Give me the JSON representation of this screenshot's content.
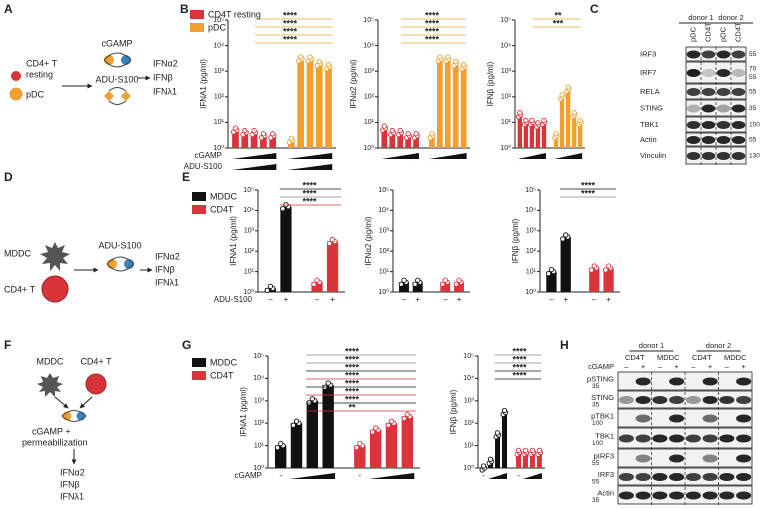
{
  "panel_labels": [
    "A",
    "B",
    "C",
    "D",
    "E",
    "F",
    "G",
    "H"
  ],
  "diagram_a": {
    "cell1_lines": [
      "CD4+ T",
      "resting"
    ],
    "cell2": "pDC",
    "agonists": [
      "cGAMP",
      "ADU-S100"
    ],
    "outputs": [
      "IFNα2",
      "IFNβ",
      "IFNλ1"
    ]
  },
  "diagram_d": {
    "cells": [
      "MDDC",
      "CD4+ T"
    ],
    "agonist": "ADU-S100",
    "outputs": [
      "IFNα2",
      "IFNβ",
      "IFNλ1"
    ]
  },
  "diagram_f": {
    "cells": [
      "MDDC",
      "CD4+ T"
    ],
    "step_lines": [
      "cGAMP +",
      "permeabilization"
    ],
    "outputs": [
      "IFNα2",
      "IFNβ",
      "IFNλ1"
    ]
  },
  "blot_c": {
    "groups": [
      "donor 1",
      "donor 2"
    ],
    "lanes": [
      "pDC",
      "CD4T",
      "pDC",
      "CD4T"
    ],
    "rows": [
      {
        "name": "IRF3",
        "mw": [
          55
        ]
      },
      {
        "name": "IRF7",
        "mw": [
          70,
          55
        ]
      },
      {
        "name": "RELA",
        "mw": [
          55
        ]
      },
      {
        "name": "STING",
        "mw": [
          35
        ]
      },
      {
        "name": "TBK1",
        "mw": [
          100
        ]
      },
      {
        "name": "Actin",
        "mw": [
          55
        ]
      },
      {
        "name": "Vinculin",
        "mw": [
          130
        ]
      }
    ]
  },
  "blot_h": {
    "treatment": "cGAMP",
    "groups": [
      "donor 1",
      "donor 2"
    ],
    "lanes": [
      "CD4T",
      "MDDC",
      "CD4T",
      "MDDC"
    ],
    "signs": [
      "–",
      "+"
    ],
    "rows": [
      {
        "name": "pSTING",
        "mw": [
          35
        ]
      },
      {
        "name": "STING",
        "mw": [
          35
        ]
      },
      {
        "name": "pTBK1",
        "mw": [
          100
        ]
      },
      {
        "name": "TBK1",
        "mw": [
          100
        ]
      },
      {
        "name": "pIRF3",
        "mw": [
          55
        ]
      },
      {
        "name": "IRF3",
        "mw": [
          55
        ]
      },
      {
        "name": "Actin",
        "mw": [
          35
        ]
      }
    ]
  },
  "chart_data": [
    {
      "type": "bar",
      "ylabel": "IFNA1 (pg/ml)",
      "log": true,
      "ylim": [
        1,
        100000
      ],
      "yticks": [
        {
          "value": 1,
          "label": "10⁰"
        },
        {
          "value": 10,
          "label": "10¹"
        },
        {
          "value": 100,
          "label": "10²"
        },
        {
          "value": 1000,
          "label": "10³"
        },
        {
          "value": 10000,
          "label": "10⁴"
        },
        {
          "value": 100000,
          "label": "10⁵"
        }
      ],
      "categories": [
        null,
        null,
        null,
        null,
        null
      ],
      "legend": true,
      "xlabels": [
        "cGAMP",
        "ADU-S100"
      ],
      "series": [
        {
          "name": "CD4T resting",
          "color": "#d9343a",
          "values": [
            5,
            4,
            4,
            3,
            3
          ]
        },
        {
          "name": "pDC",
          "color": "#f0a030",
          "values": [
            2,
            3000,
            3000,
            2000,
            1500
          ]
        }
      ],
      "annotations": [
        {
          "text": "****",
          "color": "#f0a030"
        },
        {
          "text": "****",
          "color": "#f0a030"
        },
        {
          "text": "****",
          "color": "#f0a030"
        },
        {
          "text": "****",
          "color": "#f0a030"
        }
      ]
    },
    {
      "type": "bar",
      "ylabel": "IFNα2 (pg/ml)",
      "log": true,
      "ylim": [
        1,
        100000
      ],
      "yticks": [
        {
          "value": 1,
          "label": "10⁰"
        },
        {
          "value": 10,
          "label": "10¹"
        },
        {
          "value": 100,
          "label": "10²"
        },
        {
          "value": 1000,
          "label": "10³"
        },
        {
          "value": 10000,
          "label": "10⁴"
        },
        {
          "value": 100000,
          "label": "10⁵"
        }
      ],
      "categories": [
        null,
        null,
        null,
        null,
        null
      ],
      "series": [
        {
          "name": "CD4T resting",
          "color": "#d9343a",
          "values": [
            6,
            4,
            4,
            3,
            3
          ]
        },
        {
          "name": "pDC",
          "color": "#f0a030",
          "values": [
            3,
            3000,
            3000,
            2000,
            1500
          ]
        }
      ],
      "annotations": [
        {
          "text": "****",
          "color": "#f0a030"
        },
        {
          "text": "****",
          "color": "#f0a030"
        },
        {
          "text": "****",
          "color": "#f0a030"
        },
        {
          "text": "****",
          "color": "#f0a030"
        }
      ]
    },
    {
      "type": "bar",
      "ylabel": "IFNβ (pg/ml)",
      "log": true,
      "ylim": [
        1,
        100000
      ],
      "yticks": [
        {
          "value": 1,
          "label": "10⁰"
        },
        {
          "value": 10,
          "label": "10¹"
        },
        {
          "value": 100,
          "label": "10²"
        },
        {
          "value": 1000,
          "label": "10³"
        },
        {
          "value": 10000,
          "label": "10⁴"
        },
        {
          "value": 100000,
          "label": "10⁵"
        }
      ],
      "categories": [
        null,
        null,
        null,
        null,
        null
      ],
      "series": [
        {
          "name": "CD4T resting",
          "color": "#d9343a",
          "values": [
            20,
            10,
            10,
            8,
            10
          ]
        },
        {
          "name": "pDC",
          "color": "#f0a030",
          "values": [
            3,
            100,
            200,
            20,
            10
          ]
        }
      ],
      "annotations": [
        {
          "text": "**",
          "color": "#f0a030"
        },
        {
          "text": "***",
          "color": "#f0a030"
        }
      ]
    },
    {
      "type": "bar",
      "ylabel": "IFNA1 (pg/ml)",
      "log": true,
      "ylim": [
        1,
        100000
      ],
      "yticks": [
        {
          "value": 1,
          "label": "10⁰"
        },
        {
          "value": 10,
          "label": "10¹"
        },
        {
          "value": 100,
          "label": "10²"
        },
        {
          "value": 1000,
          "label": "10³"
        },
        {
          "value": 10000,
          "label": "10⁴"
        },
        {
          "value": 100000,
          "label": "10⁵"
        }
      ],
      "categories": [
        "–",
        "+"
      ],
      "legend": true,
      "xlabels": [
        "ADU-S100"
      ],
      "series": [
        {
          "name": "MDDC",
          "color": "#111111",
          "values": [
            1.5,
            15000
          ]
        },
        {
          "name": "CD4T",
          "color": "#d9343a",
          "values": [
            3,
            300
          ]
        }
      ],
      "annotations": [
        {
          "text": "****",
          "color": "#111111"
        },
        {
          "text": "****",
          "color": "#888888"
        },
        {
          "text": "****",
          "color": "#d9343a"
        }
      ]
    },
    {
      "type": "bar",
      "ylabel": "IFNα2 (pg/ml)",
      "log": true,
      "ylim": [
        1,
        100000
      ],
      "yticks": [
        {
          "value": 1,
          "label": "10⁰"
        },
        {
          "value": 10,
          "label": "10¹"
        },
        {
          "value": 100,
          "label": "10²"
        },
        {
          "value": 1000,
          "label": "10³"
        },
        {
          "value": 10000,
          "label": "10⁴"
        },
        {
          "value": 100000,
          "label": "10⁵"
        }
      ],
      "categories": [
        "–",
        "+"
      ],
      "series": [
        {
          "name": "MDDC",
          "color": "#111111",
          "values": [
            3,
            3
          ]
        },
        {
          "name": "CD4T",
          "color": "#d9343a",
          "values": [
            3,
            3
          ]
        }
      ]
    },
    {
      "type": "bar",
      "ylabel": "IFNβ (pg/ml)",
      "log": true,
      "ylim": [
        1,
        100000
      ],
      "yticks": [
        {
          "value": 1,
          "label": "10⁰"
        },
        {
          "value": 10,
          "label": "10¹"
        },
        {
          "value": 100,
          "label": "10²"
        },
        {
          "value": 1000,
          "label": "10³"
        },
        {
          "value": 10000,
          "label": "10⁴"
        },
        {
          "value": 100000,
          "label": "10⁵"
        }
      ],
      "categories": [
        "–",
        "+"
      ],
      "series": [
        {
          "name": "MDDC",
          "color": "#111111",
          "values": [
            10,
            500
          ]
        },
        {
          "name": "CD4T",
          "color": "#d9343a",
          "values": [
            15,
            15
          ]
        }
      ],
      "annotations": [
        {
          "text": "****",
          "color": "#111111"
        },
        {
          "text": "****",
          "color": "#888888"
        }
      ]
    },
    {
      "type": "bar",
      "ylabel": "IFNA1 (pg/ml)",
      "log": true,
      "ylim": [
        1,
        100000
      ],
      "yticks": [
        {
          "value": 1,
          "label": "10⁰"
        },
        {
          "value": 10,
          "label": "10¹"
        },
        {
          "value": 100,
          "label": "10²"
        },
        {
          "value": 1000,
          "label": "10³"
        },
        {
          "value": 10000,
          "label": "10⁴"
        },
        {
          "value": 100000,
          "label": "10⁵"
        }
      ],
      "categories": [
        "-",
        null,
        null,
        null
      ],
      "legend": true,
      "xlabels": [
        "cGAMP"
      ],
      "series": [
        {
          "name": "MDDC",
          "color": "#111111",
          "values": [
            10,
            100,
            1000,
            5000
          ]
        },
        {
          "name": "CD4T",
          "color": "#d9343a",
          "values": [
            10,
            50,
            100,
            200
          ]
        }
      ],
      "annotations": [
        {
          "text": "****",
          "color": "#888888"
        },
        {
          "text": "****",
          "color": "#888888"
        },
        {
          "text": "****",
          "color": "#111111"
        },
        {
          "text": "****",
          "color": "#d9343a"
        },
        {
          "text": "****",
          "color": "#111111"
        },
        {
          "text": "****",
          "color": "#d9343a"
        },
        {
          "text": "****",
          "color": "#111111"
        },
        {
          "text": "**",
          "color": "#d9343a"
        }
      ]
    },
    {
      "type": "bar",
      "ylabel": "IFNβ (pg/ml)",
      "log": true,
      "ylim": [
        1,
        100000
      ],
      "yticks": [
        {
          "value": 1,
          "label": "10⁰"
        },
        {
          "value": 10,
          "label": "10¹"
        },
        {
          "value": 100,
          "label": "10²"
        },
        {
          "value": 1000,
          "label": "10³"
        },
        {
          "value": 10000,
          "label": "10⁴"
        },
        {
          "value": 100000,
          "label": "10⁵"
        }
      ],
      "categories": [
        "-",
        null,
        null,
        null
      ],
      "series": [
        {
          "name": "MDDC",
          "color": "#111111",
          "values": [
            1,
            2,
            30,
            300
          ]
        },
        {
          "name": "CD4T",
          "color": "#d9343a",
          "values": [
            5,
            5,
            5,
            5
          ]
        }
      ],
      "annotations": [
        {
          "text": "****",
          "color": "#888888"
        },
        {
          "text": "****",
          "color": "#888888"
        },
        {
          "text": "****",
          "color": "#111111"
        },
        {
          "text": "****",
          "color": "#111111"
        }
      ]
    }
  ]
}
